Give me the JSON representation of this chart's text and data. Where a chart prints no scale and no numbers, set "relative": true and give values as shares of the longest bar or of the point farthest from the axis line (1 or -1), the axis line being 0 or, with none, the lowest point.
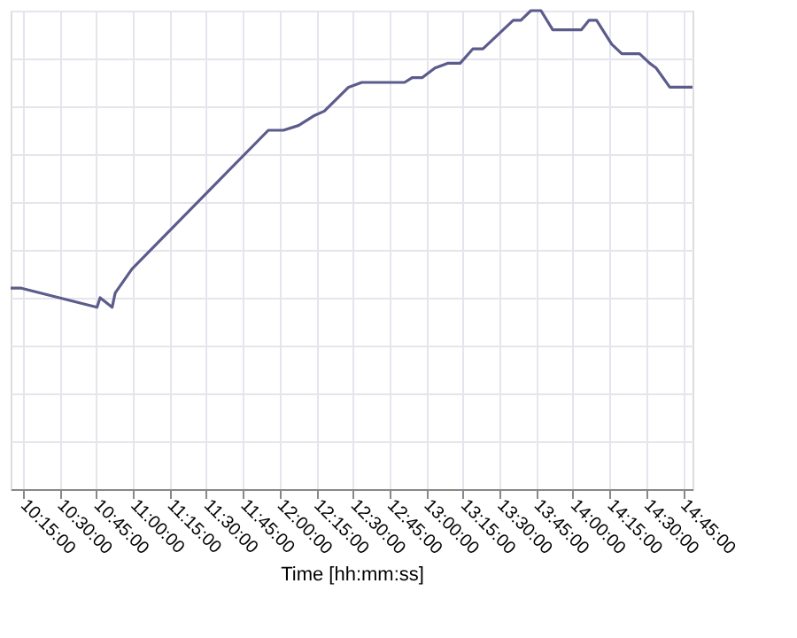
{
  "chart_data": {
    "type": "line",
    "xlabel": "Time [hh:mm:ss]",
    "relative": true,
    "grid": true,
    "marker": "none",
    "line_style": "solid",
    "xlim": [
      10.167,
      14.816
    ],
    "xticks": [
      {
        "value": 10.25,
        "label": "10:15:00"
      },
      {
        "value": 10.5,
        "label": "10:30:00"
      },
      {
        "value": 10.75,
        "label": "10:45:00"
      },
      {
        "value": 11,
        "label": "11:00:00"
      },
      {
        "value": 11.25,
        "label": "11:15:00"
      },
      {
        "value": 11.5,
        "label": "11:30:00"
      },
      {
        "value": 11.75,
        "label": "11:45:00"
      },
      {
        "value": 12,
        "label": "12:00:00"
      },
      {
        "value": 12.25,
        "label": "12:15:00"
      },
      {
        "value": 12.5,
        "label": "12:30:00"
      },
      {
        "value": 12.75,
        "label": "12:45:00"
      },
      {
        "value": 13,
        "label": "13:00:00"
      },
      {
        "value": 13.25,
        "label": "13:15:00"
      },
      {
        "value": 13.5,
        "label": "13:30:00"
      },
      {
        "value": 13.75,
        "label": "13:45:00"
      },
      {
        "value": 14,
        "label": "14:00:00"
      },
      {
        "value": 14.25,
        "label": "14:15:00"
      },
      {
        "value": 14.5,
        "label": "14:30:00"
      },
      {
        "value": 14.75,
        "label": "14:45:00"
      }
    ],
    "series": [
      {
        "color": "#5c5c8c",
        "x": [
          10.167,
          10.24,
          10.756,
          10.777,
          10.859,
          10.88,
          10.994,
          11.924,
          12.027,
          12.13,
          12.233,
          12.306,
          12.471,
          12.561,
          12.664,
          12.698,
          12.819,
          12.853,
          12.905,
          12.974,
          13.06,
          13.146,
          13.232,
          13.318,
          13.387,
          13.525,
          13.594,
          13.646,
          13.714,
          13.783,
          13.863,
          14.059,
          14.111,
          14.137,
          14.162,
          14.265,
          14.334,
          14.455,
          14.524,
          14.568,
          14.661,
          14.816
        ],
        "values": [
          0.42,
          0.42,
          0.38,
          0.4,
          0.38,
          0.41,
          0.46,
          0.75,
          0.75,
          0.76,
          0.78,
          0.79,
          0.84,
          0.85,
          0.85,
          0.85,
          0.85,
          0.85,
          0.86,
          0.86,
          0.88,
          0.89,
          0.89,
          0.92,
          0.92,
          0.96,
          0.98,
          0.98,
          1,
          1,
          0.96,
          0.96,
          0.98,
          0.98,
          0.98,
          0.93,
          0.91,
          0.91,
          0.89,
          0.88,
          0.84,
          0.84
        ]
      }
    ]
  }
}
